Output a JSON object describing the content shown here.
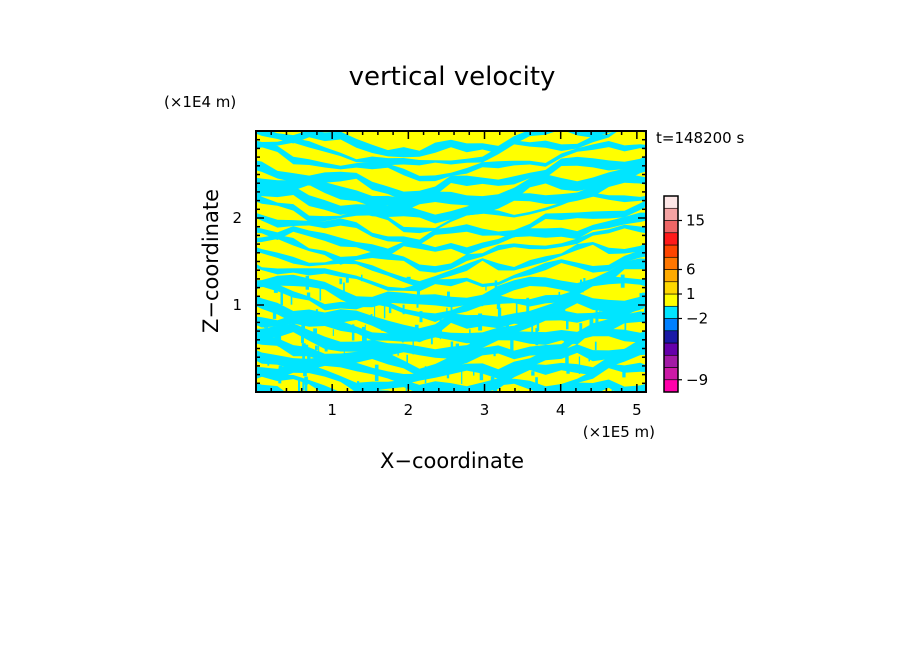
{
  "chart_data": {
    "type": "heatmap",
    "title": "vertical velocity",
    "xlabel": "X−coordinate",
    "ylabel": "Z−coordinate",
    "x_unit": "(×1E5 m)",
    "z_unit": "(×1E4 m)",
    "time_label": "t=148200 s",
    "xlim": [
      0,
      5.12
    ],
    "zlim": [
      0,
      3.0
    ],
    "x_ticks": [
      1,
      2,
      3,
      4,
      5
    ],
    "z_ticks": [
      1,
      2
    ],
    "field_colors": {
      "positive": "#ffff00",
      "negative": "#00e5ff"
    },
    "colorbar": {
      "levels": [
        {
          "color": "#ff00aa"
        },
        {
          "color": "#cc1aa6"
        },
        {
          "color": "#a31aa6"
        },
        {
          "color": "#6600aa"
        },
        {
          "color": "#1a1aa6"
        },
        {
          "color": "#0080ff"
        },
        {
          "color": "#00e5ff"
        },
        {
          "color": "#ffff00"
        },
        {
          "color": "#ffd700"
        },
        {
          "color": "#ffaa00"
        },
        {
          "color": "#ff7700"
        },
        {
          "color": "#ff4500"
        },
        {
          "color": "#ff1a1a"
        },
        {
          "color": "#ee6666"
        },
        {
          "color": "#f4a3a3"
        },
        {
          "color": "#fde6e6"
        }
      ],
      "tick_labels": [
        {
          "text": "15",
          "level": 14
        },
        {
          "text": "6",
          "level": 10
        },
        {
          "text": "1",
          "level": 8
        },
        {
          "text": "−2",
          "level": 6
        },
        {
          "text": "−9",
          "level": 1
        }
      ]
    }
  }
}
